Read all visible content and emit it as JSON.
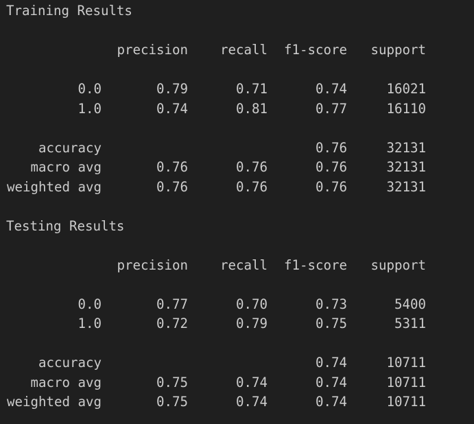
{
  "sections": [
    {
      "title": "Training Results",
      "headers": {
        "precision": "precision",
        "recall": "recall",
        "f1": "f1-score",
        "support": "support"
      },
      "class_rows": [
        {
          "label": "0.0",
          "precision": "0.79",
          "recall": "0.71",
          "f1": "0.74",
          "support": "16021"
        },
        {
          "label": "1.0",
          "precision": "0.74",
          "recall": "0.81",
          "f1": "0.77",
          "support": "16110"
        }
      ],
      "summary_rows": [
        {
          "label": "accuracy",
          "precision": "",
          "recall": "",
          "f1": "0.76",
          "support": "32131"
        },
        {
          "label": "macro avg",
          "precision": "0.76",
          "recall": "0.76",
          "f1": "0.76",
          "support": "32131"
        },
        {
          "label": "weighted avg",
          "precision": "0.76",
          "recall": "0.76",
          "f1": "0.76",
          "support": "32131"
        }
      ]
    },
    {
      "title": "Testing Results",
      "headers": {
        "precision": "precision",
        "recall": "recall",
        "f1": "f1-score",
        "support": "support"
      },
      "class_rows": [
        {
          "label": "0.0",
          "precision": "0.77",
          "recall": "0.70",
          "f1": "0.73",
          "support": "5400"
        },
        {
          "label": "1.0",
          "precision": "0.72",
          "recall": "0.79",
          "f1": "0.75",
          "support": "5311"
        }
      ],
      "summary_rows": [
        {
          "label": "accuracy",
          "precision": "",
          "recall": "",
          "f1": "0.74",
          "support": "10711"
        },
        {
          "label": "macro avg",
          "precision": "0.75",
          "recall": "0.74",
          "f1": "0.74",
          "support": "10711"
        },
        {
          "label": "weighted avg",
          "precision": "0.75",
          "recall": "0.74",
          "f1": "0.74",
          "support": "10711"
        }
      ]
    }
  ]
}
